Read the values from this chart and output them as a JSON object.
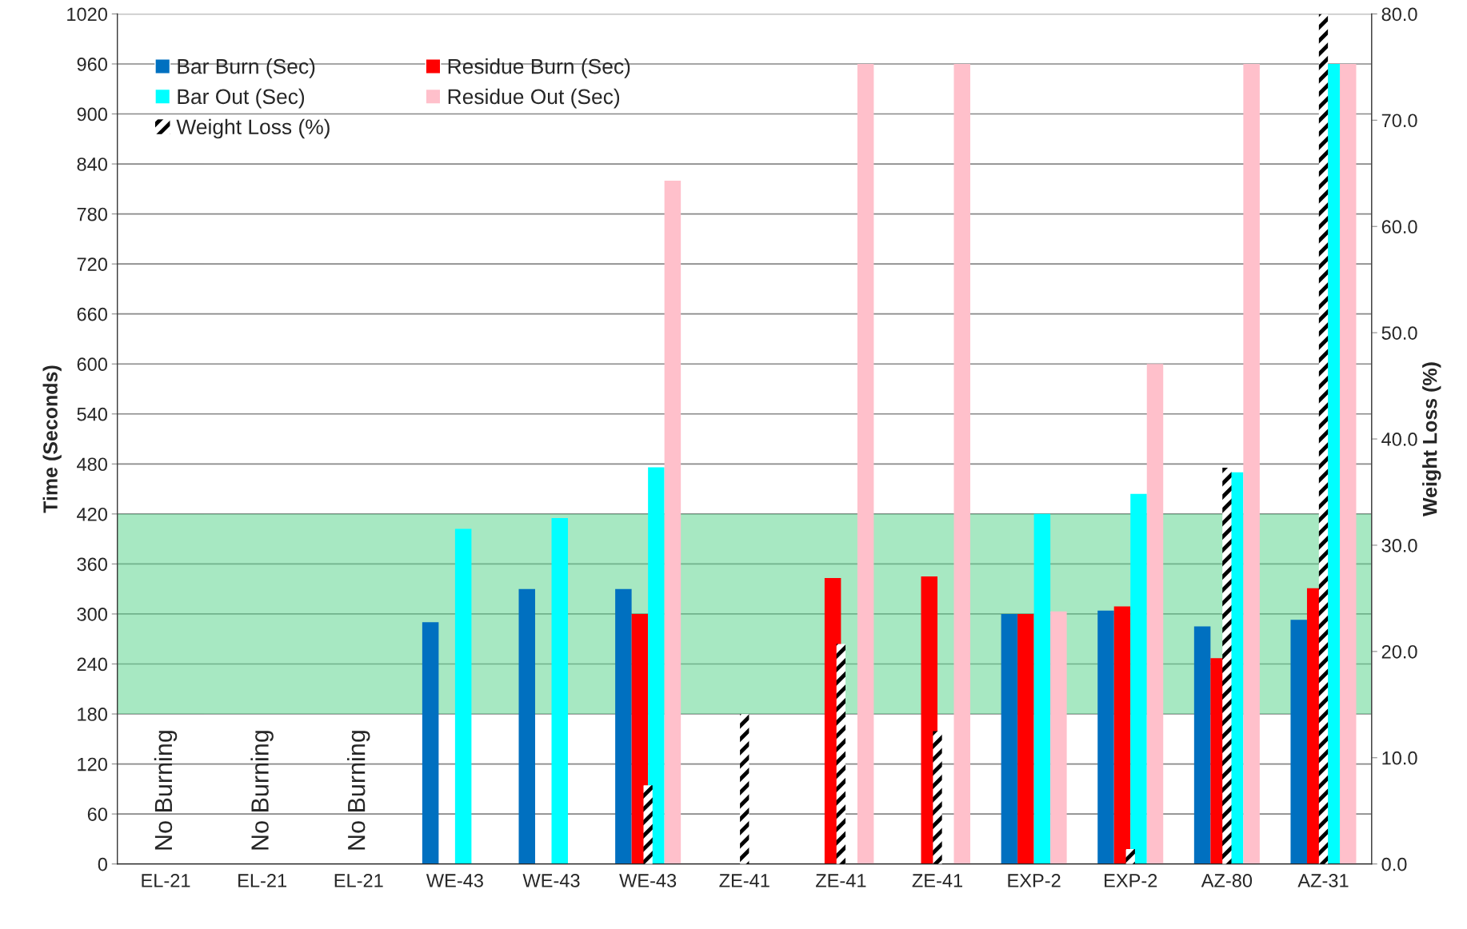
{
  "chart_data": {
    "type": "bar",
    "categories": [
      "EL-21",
      "EL-21",
      "EL-21",
      "WE-43",
      "WE-43",
      "WE-43",
      "ZE-41",
      "ZE-41",
      "ZE-41",
      "EXP-2",
      "EXP-2",
      "AZ-80",
      "AZ-31"
    ],
    "ylabel": "Time (Seconds)",
    "y2label": "Weight Loss (%)",
    "series": [
      {
        "name": "Bar Burn (Sec)",
        "color": "#0070c0",
        "values": [
          null,
          null,
          null,
          290,
          330,
          330,
          null,
          null,
          null,
          300,
          304,
          285,
          293
        ]
      },
      {
        "name": "Residue Burn (Sec)",
        "color": "#ff0000",
        "values": [
          null,
          null,
          null,
          null,
          null,
          300,
          null,
          343,
          345,
          300,
          309,
          247,
          331
        ]
      },
      {
        "name": "Bar Out (Sec)",
        "color": "#00ffff",
        "values": [
          null,
          null,
          null,
          402,
          415,
          476,
          null,
          null,
          null,
          420,
          444,
          470,
          960
        ]
      },
      {
        "name": "Residue Out (Sec)",
        "color": "#ffc0cb",
        "values": [
          null,
          null,
          null,
          null,
          null,
          820,
          null,
          960,
          960,
          303,
          600,
          960,
          960
        ]
      },
      {
        "name": "Weight Loss (%)",
        "color": "#000000",
        "axis": "y2",
        "values": [
          null,
          null,
          null,
          null,
          null,
          7.4,
          14.1,
          20.7,
          12.5,
          null,
          1.4,
          37.3,
          80.0
        ]
      }
    ],
    "ylim": [
      0,
      1020
    ],
    "yticks": [
      0,
      60,
      120,
      180,
      240,
      300,
      360,
      420,
      480,
      540,
      600,
      660,
      720,
      780,
      840,
      900,
      960,
      1020
    ],
    "y2lim": [
      0,
      80
    ],
    "y2ticks": [
      {
        "value": 0,
        "label": "0.0"
      },
      {
        "value": 10,
        "label": "10.0"
      },
      {
        "value": 20,
        "label": "20.0"
      },
      {
        "value": 30,
        "label": "30.0"
      },
      {
        "value": 40,
        "label": "40.0"
      },
      {
        "value": 50,
        "label": "50.0"
      },
      {
        "value": 60,
        "label": "60.0"
      },
      {
        "value": 70,
        "label": "70.0"
      },
      {
        "value": 80,
        "label": "80.0"
      }
    ],
    "bands": [
      {
        "axis": "y",
        "from": 180,
        "to": 420,
        "color": "#5ed690"
      }
    ],
    "annotations": [
      "No Burning",
      "No Burning",
      "No Burning"
    ],
    "grid": "y",
    "legend": "top left"
  }
}
